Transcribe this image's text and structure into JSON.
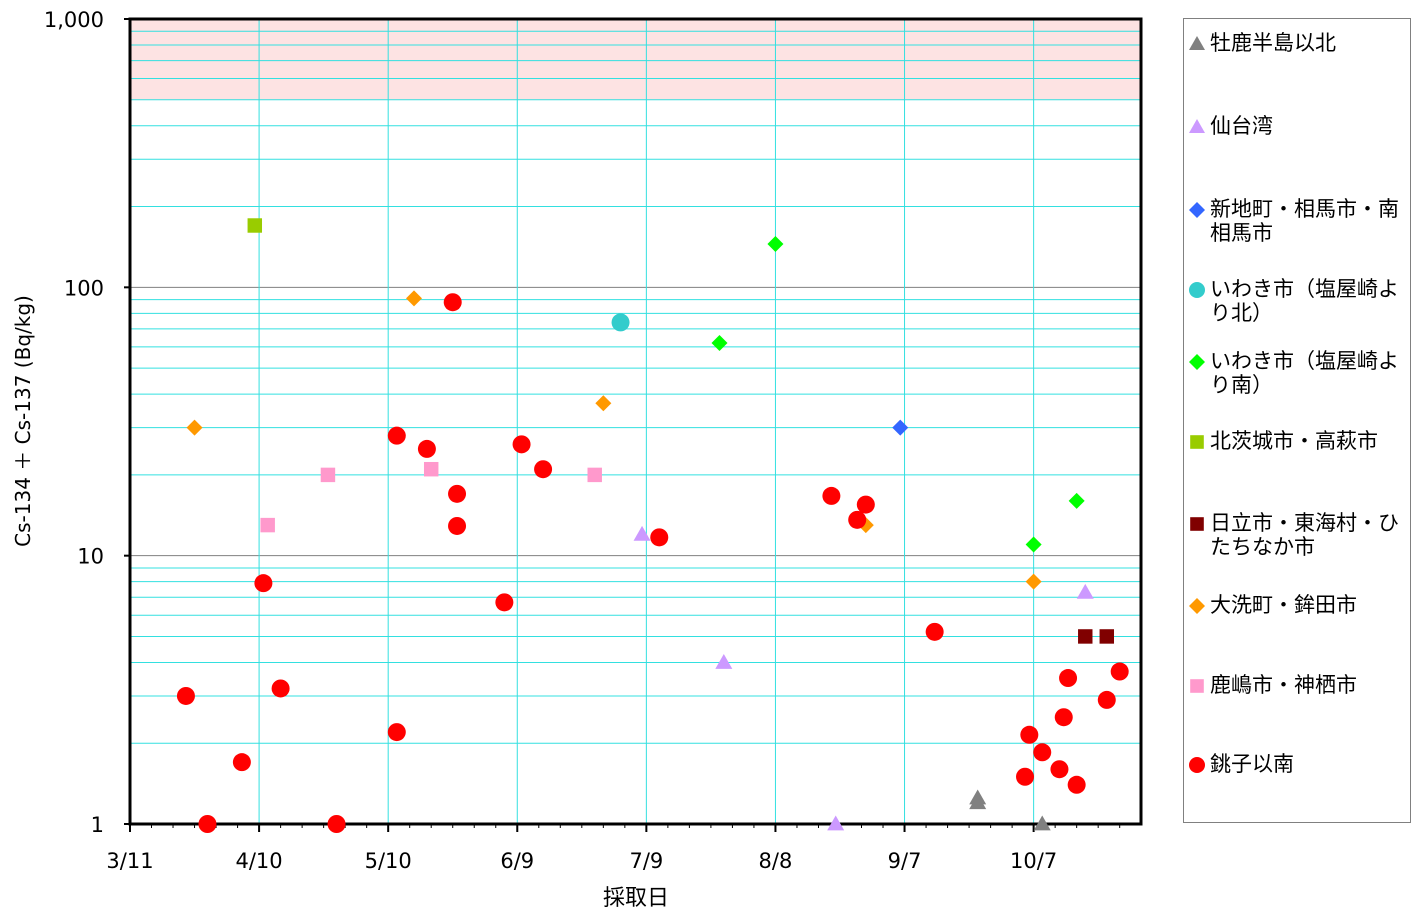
{
  "chart_data": {
    "type": "scatter",
    "xlabel": "採取日",
    "ylabel": "Cs-134 ＋ Cs-137 (Bq/kg)",
    "x_ticks": [
      "3/11",
      "4/10",
      "5/10",
      "6/9",
      "7/9",
      "8/8",
      "9/7",
      "10/7"
    ],
    "y_ticks": [
      "1",
      "10",
      "100",
      "1,000"
    ],
    "y_scale": "log",
    "ylim": [
      1,
      1000
    ],
    "xlim": [
      "2011-03-11",
      "2011-10-31"
    ],
    "grid": true,
    "highlight_band": {
      "y_from": 500,
      "y_to": 1000,
      "color": "#fde3e3"
    },
    "legend_position": "right",
    "series": [
      {
        "name": "牡鹿半島以北",
        "marker": "triangle",
        "color": "#808080",
        "points": [
          [
            "2011-09-24",
            1.2
          ],
          [
            "2011-09-24",
            1.25
          ],
          [
            "2011-10-09",
            1.0
          ]
        ]
      },
      {
        "name": "仙台湾",
        "marker": "triangle",
        "color": "#cc99ff",
        "points": [
          [
            "2011-07-08",
            12
          ],
          [
            "2011-07-27",
            4
          ],
          [
            "2011-08-22",
            1.0
          ],
          [
            "2011-10-19",
            7.3
          ]
        ]
      },
      {
        "name": "新地町・相馬市・南相馬市",
        "marker": "diamond",
        "color": "#3366ff",
        "points": [
          [
            "2011-09-06",
            30
          ]
        ]
      },
      {
        "name": "いわき市（塩屋崎より北）",
        "marker": "circle",
        "color": "#33cccc",
        "points": [
          [
            "2011-07-03",
            74
          ]
        ]
      },
      {
        "name": "いわき市（塩屋崎より南）",
        "marker": "diamond",
        "color": "#00ff00",
        "points": [
          [
            "2011-07-26",
            62
          ],
          [
            "2011-08-08",
            145
          ],
          [
            "2011-10-07",
            11
          ],
          [
            "2011-10-17",
            16
          ]
        ]
      },
      {
        "name": "北茨城市・高萩市",
        "marker": "square",
        "color": "#99cc00",
        "points": [
          [
            "2011-04-09",
            170
          ]
        ]
      },
      {
        "name": "日立市・東海村・ひたちなか市",
        "marker": "square",
        "color": "#800000",
        "points": [
          [
            "2011-10-19",
            5
          ],
          [
            "2011-10-24",
            5
          ]
        ]
      },
      {
        "name": "大洗町・鉾田市",
        "marker": "diamond",
        "color": "#ff9900",
        "points": [
          [
            "2011-03-26",
            30
          ],
          [
            "2011-05-16",
            91
          ],
          [
            "2011-06-29",
            37
          ],
          [
            "2011-08-29",
            13
          ],
          [
            "2011-10-07",
            8
          ]
        ]
      },
      {
        "name": "鹿嶋市・神栖市",
        "marker": "square",
        "color": "#ff99cc",
        "points": [
          [
            "2011-04-12",
            13
          ],
          [
            "2011-04-26",
            20
          ],
          [
            "2011-05-20",
            21
          ],
          [
            "2011-06-27",
            20
          ]
        ]
      },
      {
        "name": "銚子以南",
        "marker": "circle",
        "color": "#ff0000",
        "points": [
          [
            "2011-03-24",
            3.0
          ],
          [
            "2011-03-29",
            1.0
          ],
          [
            "2011-04-06",
            1.7
          ],
          [
            "2011-04-11",
            7.9
          ],
          [
            "2011-04-15",
            3.2
          ],
          [
            "2011-04-28",
            1.0
          ],
          [
            "2011-05-12",
            28
          ],
          [
            "2011-05-12",
            2.2
          ],
          [
            "2011-05-19",
            25
          ],
          [
            "2011-05-25",
            88
          ],
          [
            "2011-05-26",
            17
          ],
          [
            "2011-05-26",
            12.9
          ],
          [
            "2011-06-06",
            6.7
          ],
          [
            "2011-06-10",
            26
          ],
          [
            "2011-06-15",
            21
          ],
          [
            "2011-07-12",
            11.7
          ],
          [
            "2011-08-21",
            16.7
          ],
          [
            "2011-08-27",
            13.6
          ],
          [
            "2011-08-29",
            15.5
          ],
          [
            "2011-09-14",
            5.2
          ],
          [
            "2011-10-06",
            2.15
          ],
          [
            "2011-10-05",
            1.5
          ],
          [
            "2011-10-09",
            1.85
          ],
          [
            "2011-10-13",
            1.6
          ],
          [
            "2011-10-14",
            2.5
          ],
          [
            "2011-10-15",
            3.5
          ],
          [
            "2011-10-17",
            1.4
          ],
          [
            "2011-10-24",
            2.9
          ],
          [
            "2011-10-27",
            3.7
          ]
        ]
      }
    ]
  }
}
